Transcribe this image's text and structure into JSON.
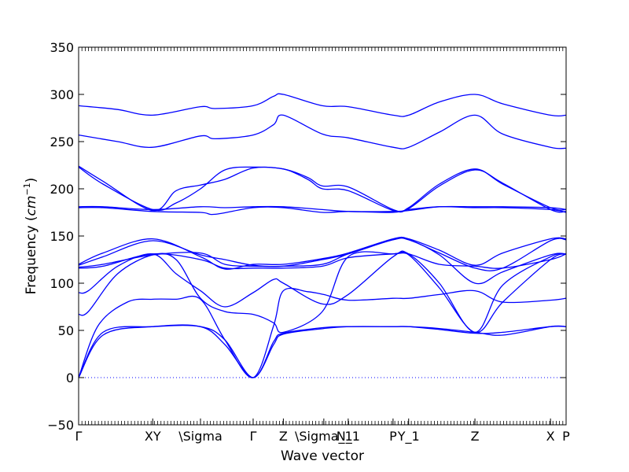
{
  "chart_data": {
    "type": "line",
    "title": "",
    "xlabel": "Wave vector",
    "ylabel_text": "Frequency (",
    "ylabel_unit_base": "cm",
    "ylabel_unit_exp": "−1",
    "ylabel_close": ")",
    "ylim": [
      -50,
      350
    ],
    "yticks": [
      -50,
      0,
      50,
      100,
      150,
      200,
      250,
      300,
      350
    ],
    "yticklabels": [
      "−50",
      "0",
      "50",
      "100",
      "150",
      "200",
      "250",
      "300",
      "350"
    ],
    "xlim": [
      0,
      1
    ],
    "high_symmetry_points": [
      {
        "label": "Γ",
        "x": 0.0
      },
      {
        "label": "XY",
        "x": 0.152
      },
      {
        "label": "\\Sigma",
        "x": 0.25
      },
      {
        "label": "Γ",
        "x": 0.358
      },
      {
        "label": "Z",
        "x": 0.42
      },
      {
        "label": "\\Sigma_1",
        "x": 0.503
      },
      {
        "label": "N_1",
        "x": 0.553
      },
      {
        "label": "P",
        "x": 0.645
      },
      {
        "label": "Y_1",
        "x": 0.677
      },
      {
        "label": "Z",
        "x": 0.813
      },
      {
        "label": "X",
        "x": 0.968
      },
      {
        "label": "P",
        "x": 1.0
      }
    ],
    "line_color": "#0000ff",
    "zero_line_color": "#0000ff",
    "grid": false,
    "series": [
      {
        "x": [
          0,
          0.05,
          0.152,
          0.25,
          0.3,
          0.358,
          0.4,
          0.42,
          0.503,
          0.553,
          0.645,
          0.677,
          0.74,
          0.813,
          0.87,
          0.968,
          1.0
        ],
        "y": [
          0,
          45,
          54,
          54,
          35,
          0,
          35,
          46,
          52,
          54,
          54,
          54,
          51,
          47,
          48,
          54,
          54
        ]
      },
      {
        "x": [
          0,
          0.05,
          0.152,
          0.25,
          0.3,
          0.358,
          0.4,
          0.42,
          0.503,
          0.553,
          0.645,
          0.677,
          0.74,
          0.813,
          0.87,
          0.968,
          1.0
        ],
        "y": [
          0,
          48,
          54,
          54,
          40,
          0,
          38,
          47,
          53,
          54,
          54,
          54,
          52,
          48,
          45,
          54,
          54
        ]
      },
      {
        "x": [
          0,
          0.04,
          0.1,
          0.152,
          0.2,
          0.25,
          0.3,
          0.358,
          0.4,
          0.42,
          0.47,
          0.503,
          0.553,
          0.645,
          0.677,
          0.74,
          0.813,
          0.87,
          0.968,
          1.0
        ],
        "y": [
          0,
          55,
          80,
          83,
          83,
          83,
          40,
          0,
          55,
          92,
          91,
          88,
          82,
          84,
          84,
          88,
          92,
          80,
          82,
          84
        ]
      },
      {
        "x": [
          0,
          0.02,
          0.08,
          0.152,
          0.2,
          0.25,
          0.3,
          0.358,
          0.4,
          0.42,
          0.5,
          0.553,
          0.645,
          0.677,
          0.74,
          0.813,
          0.87,
          0.968,
          1.0
        ],
        "y": [
          67,
          70,
          110,
          130,
          125,
          84,
          70,
          67,
          58,
          48,
          70,
          128,
          131,
          130,
          95,
          48,
          80,
          125,
          131
        ]
      },
      {
        "x": [
          0,
          0.02,
          0.08,
          0.152,
          0.2,
          0.25,
          0.3,
          0.358,
          0.4,
          0.42,
          0.5,
          0.553,
          0.645,
          0.677,
          0.74,
          0.813,
          0.87,
          0.968,
          1.0
        ],
        "y": [
          90,
          92,
          118,
          131,
          110,
          92,
          75,
          90,
          104,
          100,
          78,
          88,
          128,
          131,
          100,
          48,
          98,
          128,
          131
        ]
      },
      {
        "x": [
          0,
          0.05,
          0.152,
          0.25,
          0.3,
          0.358,
          0.42,
          0.5,
          0.553,
          0.645,
          0.677,
          0.74,
          0.813,
          0.87,
          0.968,
          1.0
        ],
        "y": [
          116,
          118,
          131,
          125,
          116,
          116,
          116,
          118,
          127,
          131,
          131,
          120,
          118,
          116,
          125,
          131
        ]
      },
      {
        "x": [
          0,
          0.05,
          0.152,
          0.25,
          0.3,
          0.358,
          0.42,
          0.5,
          0.553,
          0.645,
          0.677,
          0.74,
          0.813,
          0.87,
          0.968,
          1.0
        ],
        "y": [
          117,
          120,
          130,
          132,
          120,
          118,
          118,
          120,
          131,
          146,
          146,
          130,
          100,
          112,
          130,
          131
        ]
      },
      {
        "x": [
          0,
          0.05,
          0.152,
          0.25,
          0.3,
          0.358,
          0.42,
          0.5,
          0.553,
          0.645,
          0.677,
          0.74,
          0.813,
          0.87,
          0.968,
          1.0
        ],
        "y": [
          119,
          128,
          145,
          130,
          125,
          119,
          118,
          125,
          131,
          146,
          146,
          132,
          116,
          116,
          145,
          146
        ]
      },
      {
        "x": [
          0,
          0.05,
          0.152,
          0.25,
          0.3,
          0.358,
          0.42,
          0.5,
          0.553,
          0.645,
          0.677,
          0.74,
          0.813,
          0.87,
          0.968,
          1.0
        ],
        "y": [
          120,
          132,
          147,
          128,
          115,
          120,
          120,
          126,
          132,
          147,
          147,
          135,
          119,
          132,
          147,
          147
        ]
      },
      {
        "x": [
          0,
          0.05,
          0.152,
          0.25,
          0.3,
          0.358,
          0.42,
          0.5,
          0.553,
          0.645,
          0.677,
          0.74,
          0.813,
          0.87,
          0.968,
          1.0
        ],
        "y": [
          181,
          181,
          178,
          181,
          180,
          181,
          181,
          178,
          176,
          176,
          177,
          181,
          181,
          181,
          180,
          178
        ]
      },
      {
        "x": [
          0,
          0.05,
          0.152,
          0.25,
          0.28,
          0.358,
          0.42,
          0.5,
          0.553,
          0.645,
          0.677,
          0.74,
          0.813,
          0.87,
          0.968,
          1.0
        ],
        "y": [
          180,
          180,
          176,
          175,
          173,
          180,
          180,
          175,
          176,
          175,
          178,
          181,
          180,
          180,
          178,
          175
        ]
      },
      {
        "x": [
          0,
          0.05,
          0.152,
          0.2,
          0.25,
          0.3,
          0.358,
          0.42,
          0.47,
          0.5,
          0.553,
          0.645,
          0.677,
          0.74,
          0.813,
          0.87,
          0.968,
          1.0
        ],
        "y": [
          223,
          205,
          178,
          185,
          200,
          220,
          223,
          221,
          210,
          200,
          198,
          177,
          180,
          205,
          221,
          205,
          180,
          178
        ]
      },
      {
        "x": [
          0,
          0.05,
          0.152,
          0.2,
          0.25,
          0.3,
          0.358,
          0.42,
          0.47,
          0.5,
          0.553,
          0.645,
          0.677,
          0.74,
          0.813,
          0.87,
          0.968,
          1.0
        ],
        "y": [
          224,
          208,
          177,
          198,
          204,
          210,
          222,
          221,
          212,
          203,
          202,
          178,
          179,
          203,
          220,
          206,
          178,
          176
        ]
      },
      {
        "x": [
          0,
          0.08,
          0.152,
          0.25,
          0.28,
          0.358,
          0.4,
          0.42,
          0.5,
          0.553,
          0.645,
          0.677,
          0.74,
          0.813,
          0.87,
          0.968,
          1.0
        ],
        "y": [
          257,
          250,
          244,
          256,
          253,
          257,
          268,
          278,
          258,
          254,
          244,
          244,
          260,
          278,
          258,
          244,
          243
        ]
      },
      {
        "x": [
          0,
          0.08,
          0.152,
          0.25,
          0.28,
          0.358,
          0.4,
          0.42,
          0.5,
          0.553,
          0.645,
          0.677,
          0.74,
          0.813,
          0.87,
          0.968,
          1.0
        ],
        "y": [
          288,
          284,
          278,
          287,
          285,
          288,
          298,
          300,
          288,
          287,
          278,
          278,
          292,
          300,
          290,
          278,
          278
        ]
      }
    ]
  }
}
